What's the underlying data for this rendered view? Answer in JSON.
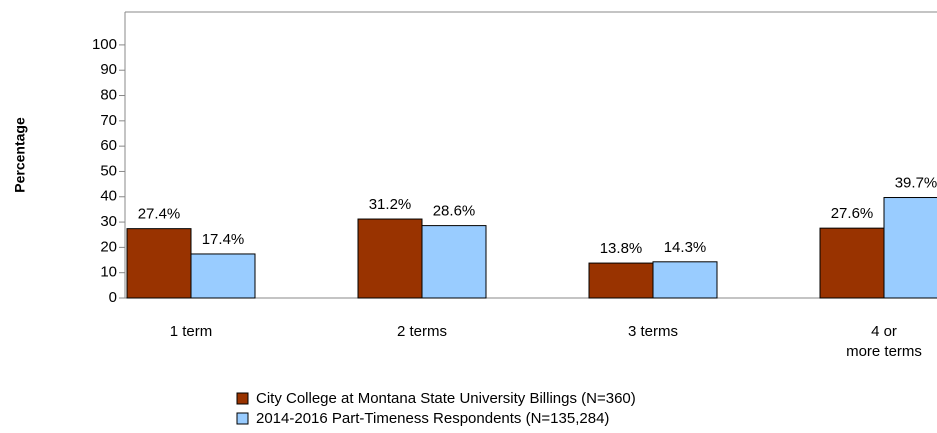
{
  "chart_data": {
    "type": "bar",
    "y_label": "Percentage",
    "categories": [
      "1 term",
      "2 terms",
      "3 terms",
      "4 or\nmore terms"
    ],
    "series": [
      {
        "name": "City College at Montana State University Billings (N=360)",
        "color": "#993300",
        "values": [
          27.4,
          31.2,
          13.8,
          27.6
        ],
        "value_labels": [
          "27.4%",
          "31.2%",
          "13.8%",
          "27.6%"
        ]
      },
      {
        "name": "2014-2016 Part-Timeness Respondents (N=135,284)",
        "color": "#99ccff",
        "values": [
          17.4,
          28.6,
          14.3,
          39.7
        ],
        "value_labels": [
          "17.4%",
          "28.6%",
          "14.3%",
          "39.7%"
        ]
      }
    ],
    "ylim": [
      0,
      113
    ],
    "yticks": [
      0,
      10,
      20,
      30,
      40,
      50,
      60,
      70,
      80,
      90,
      100
    ]
  }
}
